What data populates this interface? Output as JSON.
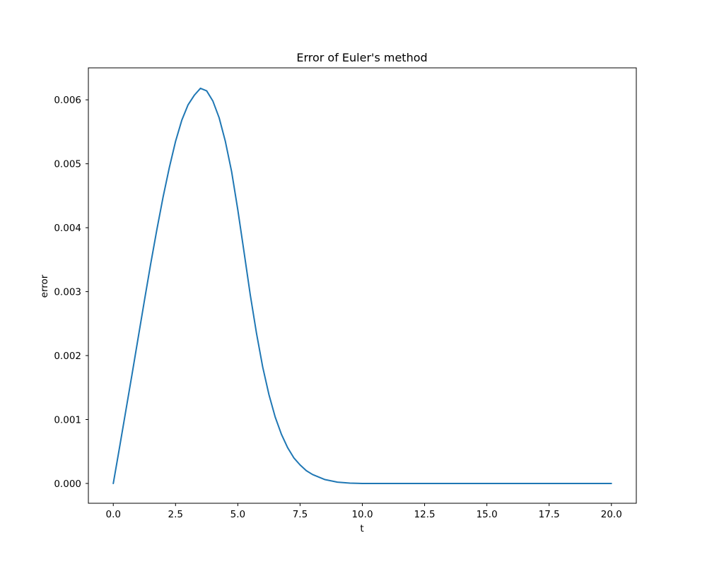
{
  "chart_data": {
    "type": "line",
    "title": "Error of Euler's method",
    "xlabel": "t",
    "ylabel": "error",
    "xlim": [
      -1.0,
      21.0
    ],
    "ylim": [
      -0.00031,
      0.0065
    ],
    "grid": false,
    "line_color": "#1f77b4",
    "xticks": [
      {
        "value": 0.0,
        "label": "0.0"
      },
      {
        "value": 2.5,
        "label": "2.5"
      },
      {
        "value": 5.0,
        "label": "5.0"
      },
      {
        "value": 7.5,
        "label": "7.5"
      },
      {
        "value": 10.0,
        "label": "10.0"
      },
      {
        "value": 12.5,
        "label": "12.5"
      },
      {
        "value": 15.0,
        "label": "15.0"
      },
      {
        "value": 17.5,
        "label": "17.5"
      },
      {
        "value": 20.0,
        "label": "20.0"
      }
    ],
    "yticks": [
      {
        "value": 0.0,
        "label": "0.000"
      },
      {
        "value": 0.001,
        "label": "0.001"
      },
      {
        "value": 0.002,
        "label": "0.002"
      },
      {
        "value": 0.003,
        "label": "0.003"
      },
      {
        "value": 0.004,
        "label": "0.004"
      },
      {
        "value": 0.005,
        "label": "0.005"
      },
      {
        "value": 0.006,
        "label": "0.006"
      }
    ],
    "series": [
      {
        "x": [
          0.0,
          0.25,
          0.5,
          0.75,
          1.0,
          1.25,
          1.5,
          1.75,
          2.0,
          2.25,
          2.5,
          2.75,
          3.0,
          3.25,
          3.5,
          3.75,
          4.0,
          4.25,
          4.5,
          4.75,
          5.0,
          5.25,
          5.5,
          5.75,
          6.0,
          6.25,
          6.5,
          6.75,
          7.0,
          7.25,
          7.5,
          7.75,
          8.0,
          8.5,
          9.0,
          9.5,
          10.0,
          10.5,
          11.0,
          12.0,
          13.0,
          14.0,
          15.0,
          16.0,
          17.0,
          18.0,
          19.0,
          20.0
        ],
        "values": [
          0.0,
          0.00056,
          0.00113,
          0.0017,
          0.00228,
          0.00286,
          0.00343,
          0.00397,
          0.00448,
          0.00494,
          0.00535,
          0.00568,
          0.00592,
          0.00607,
          0.00618,
          0.00614,
          0.00598,
          0.00572,
          0.00535,
          0.00488,
          0.00428,
          0.00362,
          0.00295,
          0.00235,
          0.00182,
          0.00139,
          0.00104,
          0.00077,
          0.00056,
          0.0004,
          0.00029,
          0.0002,
          0.00014,
          6e-05,
          2e-05,
          5e-06,
          0.0,
          0.0,
          0.0,
          0.0,
          0.0,
          0.0,
          0.0,
          0.0,
          0.0,
          0.0,
          0.0,
          0.0
        ]
      }
    ]
  }
}
